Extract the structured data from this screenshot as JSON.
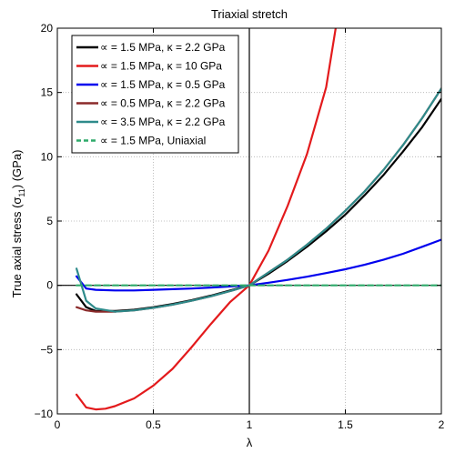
{
  "chart_data": {
    "type": "line",
    "title": "Triaxial stretch",
    "xlabel": "λ",
    "ylabel": "True axial stress (σ",
    "ylabel_sub": "11",
    "ylabel_tail": ") (GPa)",
    "xlim": [
      0,
      2
    ],
    "ylim": [
      -10,
      20
    ],
    "x_ticks": [
      0,
      0.5,
      1,
      1.5,
      2
    ],
    "x_tick_labels": [
      "0",
      "0.5",
      "1",
      "1.5",
      "2"
    ],
    "y_ticks": [
      -10,
      -5,
      0,
      5,
      10,
      15,
      20
    ],
    "y_tick_labels": [
      "−10",
      "−5",
      "0",
      "5",
      "10",
      "15",
      "20"
    ],
    "grid": true,
    "legend_position": "top-left",
    "series": [
      {
        "name": "∝ = 1.5 MPa, κ = 2.2 GPa",
        "color": "#000000",
        "dash": "solid",
        "x": [
          0.1,
          0.15,
          0.2,
          0.3,
          0.4,
          0.5,
          0.6,
          0.7,
          0.8,
          0.9,
          1.0,
          1.1,
          1.2,
          1.3,
          1.4,
          1.5,
          1.6,
          1.7,
          1.8,
          1.9,
          2.0
        ],
        "y": [
          -0.7,
          -1.7,
          -2.0,
          -2.0,
          -1.9,
          -1.7,
          -1.45,
          -1.15,
          -0.8,
          -0.4,
          0,
          0.9,
          1.9,
          3.0,
          4.2,
          5.5,
          7.0,
          8.6,
          10.4,
          12.3,
          14.5
        ]
      },
      {
        "name": "∝ = 1.5 MPa, κ = 10 GPa",
        "color": "#e31a1c",
        "dash": "solid",
        "x": [
          0.1,
          0.15,
          0.2,
          0.25,
          0.3,
          0.4,
          0.5,
          0.6,
          0.7,
          0.8,
          0.9,
          1.0,
          1.1,
          1.2,
          1.3,
          1.4,
          1.45
        ],
        "y": [
          -8.5,
          -9.5,
          -9.65,
          -9.6,
          -9.4,
          -8.8,
          -7.8,
          -6.5,
          -4.8,
          -3.0,
          -1.3,
          0,
          2.7,
          6.2,
          10.2,
          15.4,
          20
        ]
      },
      {
        "name": "∝ = 1.5 MPa, κ = 0.5 GPa",
        "color": "#0000ee",
        "dash": "solid",
        "x": [
          0.1,
          0.15,
          0.2,
          0.3,
          0.4,
          0.5,
          0.6,
          0.7,
          0.8,
          0.9,
          1.0,
          1.1,
          1.2,
          1.3,
          1.4,
          1.5,
          1.6,
          1.7,
          1.8,
          1.9,
          2.0
        ],
        "y": [
          0.7,
          -0.25,
          -0.35,
          -0.4,
          -0.4,
          -0.35,
          -0.3,
          -0.25,
          -0.17,
          -0.09,
          0,
          0.2,
          0.42,
          0.67,
          0.95,
          1.25,
          1.6,
          2.0,
          2.45,
          3.0,
          3.55
        ]
      },
      {
        "name": "∝ = 0.5 MPa, κ = 2.2 GPa",
        "color": "#8b2a2a",
        "dash": "solid",
        "x": [
          0.1,
          0.15,
          0.2,
          0.3,
          0.4,
          0.5,
          0.6,
          0.7,
          0.8,
          0.9,
          1.0,
          1.1,
          1.2,
          1.3,
          1.4,
          1.5,
          1.6,
          1.7,
          1.8,
          1.9,
          2.0
        ],
        "y": [
          -1.7,
          -1.95,
          -2.05,
          -2.05,
          -1.95,
          -1.75,
          -1.5,
          -1.2,
          -0.85,
          -0.45,
          0,
          1.0,
          2.0,
          3.15,
          4.4,
          5.8,
          7.3,
          9.0,
          10.9,
          13.0,
          15.3
        ]
      },
      {
        "name": "∝ = 3.5 MPa, κ = 2.2 GPa",
        "color": "#2e8b8b",
        "dash": "solid",
        "x": [
          0.1,
          0.15,
          0.2,
          0.3,
          0.4,
          0.5,
          0.6,
          0.7,
          0.8,
          0.9,
          1.0,
          1.1,
          1.2,
          1.3,
          1.4,
          1.5,
          1.6,
          1.7,
          1.8,
          1.9,
          2.0
        ],
        "y": [
          1.3,
          -1.2,
          -1.8,
          -2.05,
          -1.95,
          -1.75,
          -1.5,
          -1.2,
          -0.85,
          -0.45,
          0,
          1.0,
          2.0,
          3.15,
          4.4,
          5.8,
          7.3,
          9.0,
          10.9,
          13.0,
          15.3
        ]
      },
      {
        "name": "∝ = 1.5 MPa, Uniaxial",
        "color": "#2eaa6a",
        "dash": "dashed",
        "x": [
          0.1,
          0.5,
          1.0,
          1.5,
          2.0
        ],
        "y": [
          0,
          0,
          0,
          0,
          0
        ]
      }
    ]
  }
}
